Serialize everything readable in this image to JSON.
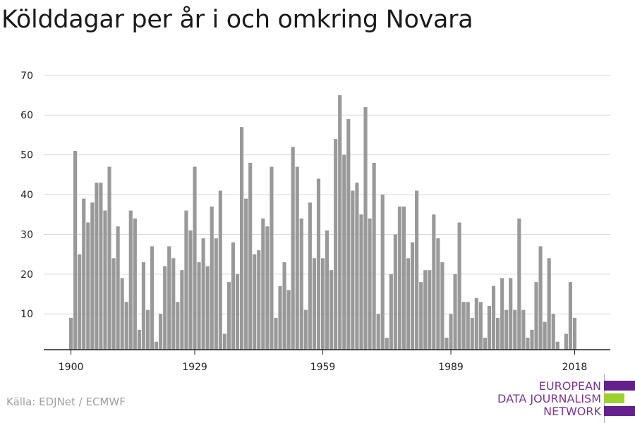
{
  "title": "Kölddagar per år i och omkring Novara",
  "source": "Källa: EDJNet / ECMWF",
  "logo": {
    "line1": "EUROPEAN",
    "line2": "DATA JOURNALISM",
    "line3": "NETWORK"
  },
  "colors": {
    "bar": "#999999",
    "grid": "#d9d9d9",
    "axis": "#222222",
    "logo_purple": "#66208b",
    "logo_green": "#9ed12f"
  },
  "chart_data": {
    "type": "bar",
    "title": "Kölddagar per år i och omkring Novara",
    "xlabel": "",
    "ylabel": "",
    "ylim": [
      1,
      72
    ],
    "yticks": [
      10,
      20,
      30,
      40,
      50,
      60,
      70
    ],
    "xticks": [
      1900,
      1929,
      1959,
      1989,
      2018
    ],
    "grid": true,
    "start_year": 1900,
    "values": [
      9,
      51,
      25,
      39,
      33,
      38,
      43,
      43,
      36,
      47,
      24,
      32,
      19,
      13,
      36,
      34,
      6,
      23,
      11,
      27,
      3,
      10,
      22,
      27,
      24,
      13,
      21,
      36,
      31,
      47,
      23,
      29,
      22,
      37,
      29,
      41,
      5,
      18,
      28,
      20,
      57,
      39,
      48,
      25,
      26,
      34,
      32,
      47,
      9,
      17,
      23,
      16,
      52,
      47,
      34,
      11,
      38,
      24,
      44,
      24,
      31,
      21,
      54,
      65,
      50,
      59,
      41,
      43,
      35,
      62,
      34,
      48,
      10,
      40,
      4,
      20,
      30,
      37,
      37,
      24,
      28,
      41,
      18,
      21,
      21,
      35,
      29,
      23,
      4,
      10,
      20,
      33,
      13,
      13,
      9,
      14,
      13,
      4,
      12,
      17,
      9,
      19,
      11,
      19,
      11,
      34,
      11,
      4,
      6,
      18,
      27,
      8,
      24,
      10,
      3,
      0,
      5,
      18,
      9
    ]
  }
}
